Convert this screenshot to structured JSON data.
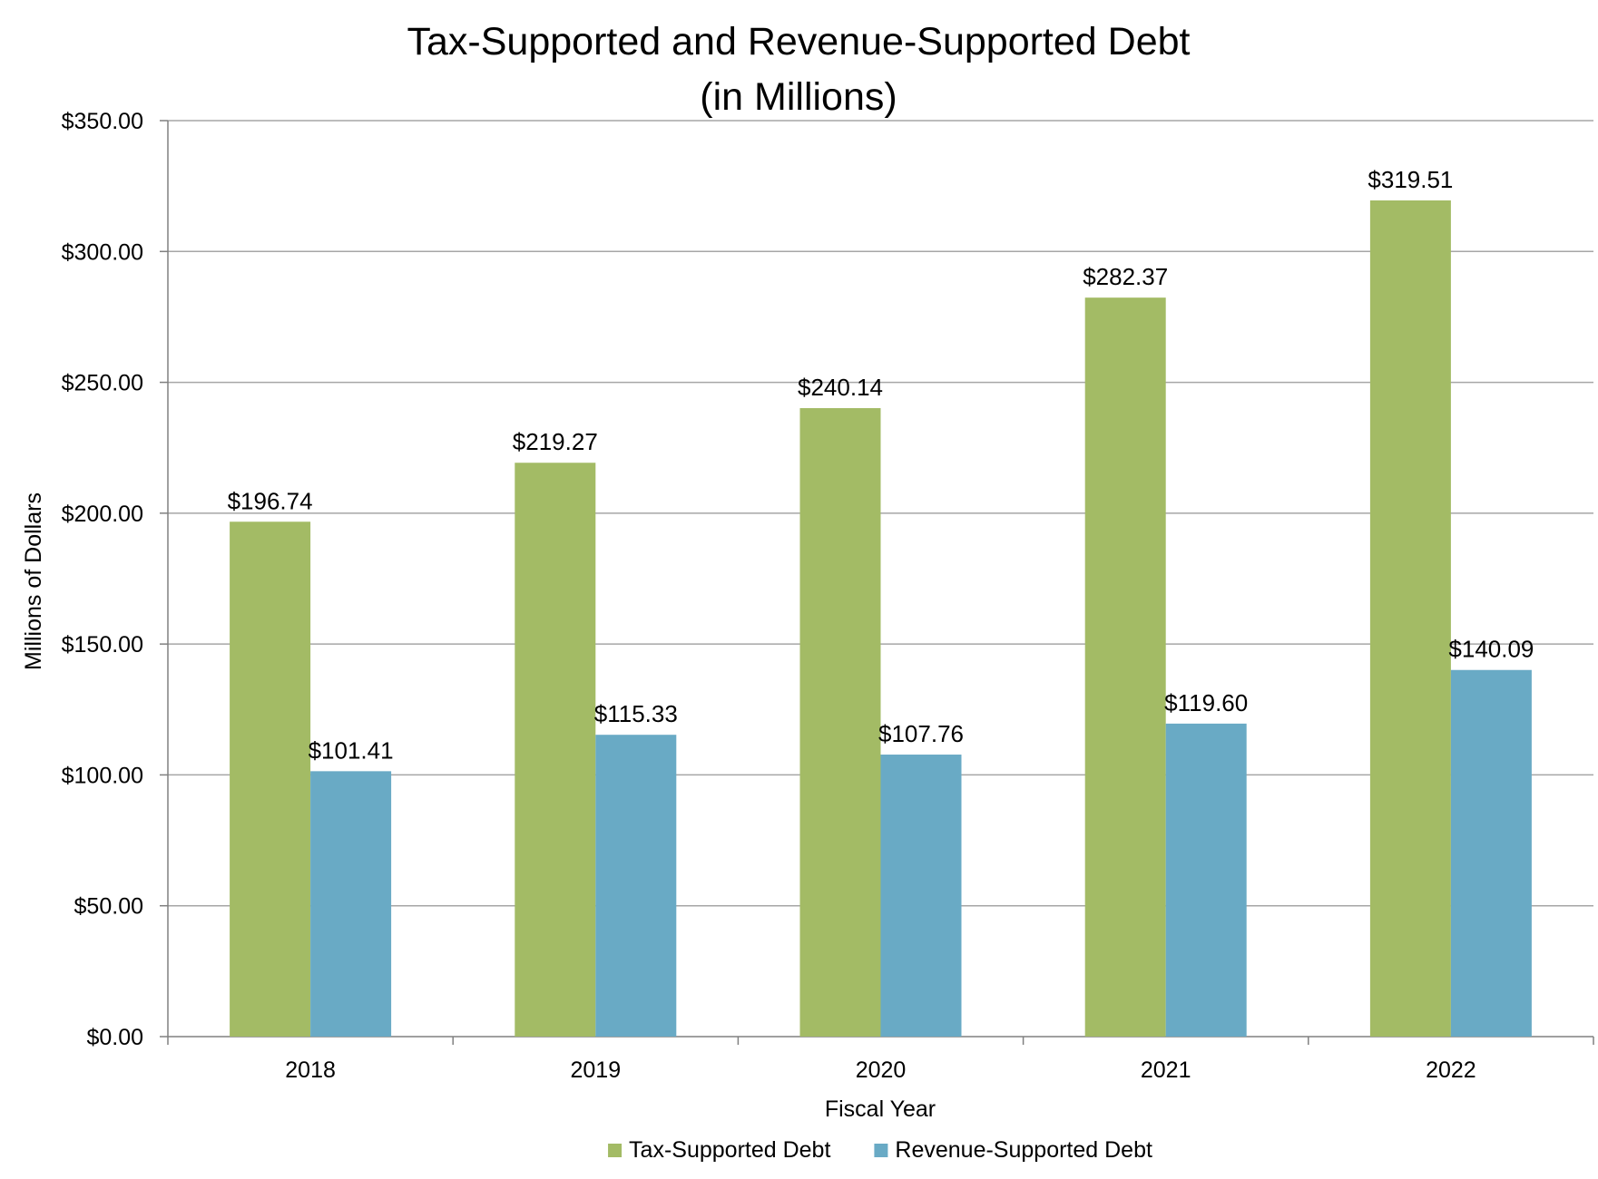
{
  "chart_data": {
    "type": "bar",
    "title_lines": [
      "Tax-Supported and Revenue-Supported Debt",
      "(in Millions)"
    ],
    "xlabel": "Fiscal Year",
    "ylabel": "Millions of Dollars",
    "categories": [
      "2018",
      "2019",
      "2020",
      "2021",
      "2022"
    ],
    "series": [
      {
        "name": "Tax-Supported Debt",
        "color": "#a3bb65",
        "values": [
          196.74,
          219.27,
          240.14,
          282.37,
          319.51
        ],
        "labels": [
          "$196.74",
          "$219.27",
          "$240.14",
          "$282.37",
          "$319.51"
        ]
      },
      {
        "name": "Revenue-Supported Debt",
        "color": "#69aac5",
        "values": [
          101.41,
          115.33,
          107.76,
          119.6,
          140.09
        ],
        "labels": [
          "$101.41",
          "$115.33",
          "$107.76",
          "$119.60",
          "$140.09"
        ]
      }
    ],
    "ylim": [
      0,
      350
    ],
    "yticks": [
      0,
      50,
      100,
      150,
      200,
      250,
      300,
      350
    ],
    "ytick_labels": [
      "$0.00",
      "$50.00",
      "$100.00",
      "$150.00",
      "$200.00",
      "$250.00",
      "$300.00",
      "$350.00"
    ],
    "grid": true,
    "legend_position": "bottom"
  }
}
